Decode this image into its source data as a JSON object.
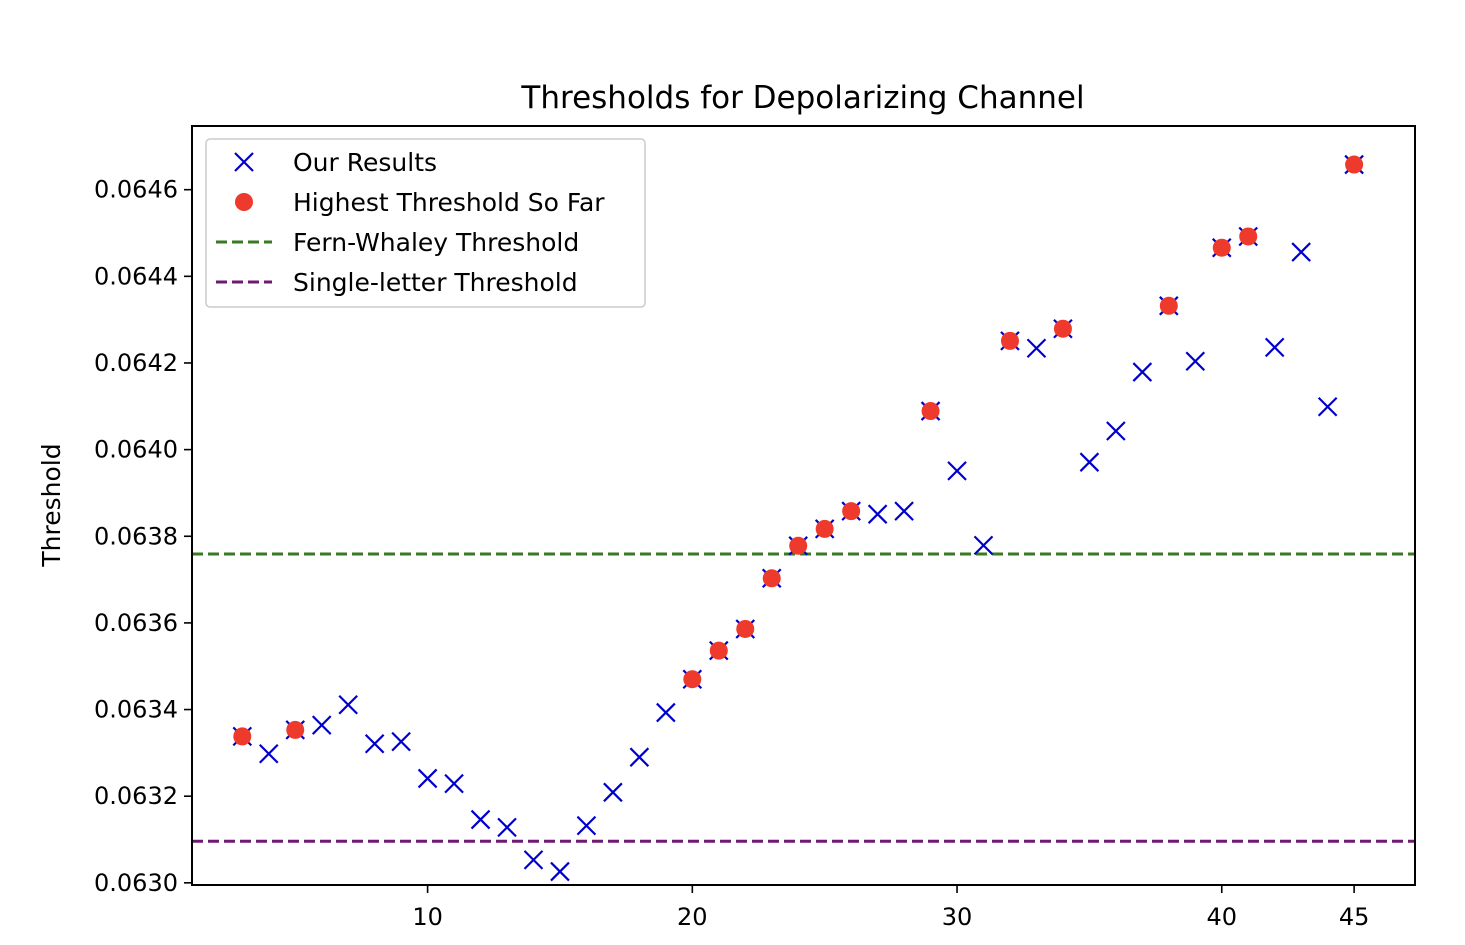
{
  "chart_data": {
    "type": "scatter",
    "title": "Thresholds for Depolarizing Channel",
    "xlabel": "",
    "ylabel": "Threshold",
    "xlim": [
      1.1,
      47.3
    ],
    "ylim": [
      0.062995,
      0.064747
    ],
    "x_ticks": [
      10,
      20,
      30,
      40,
      45
    ],
    "y_ticks": [
      0.063,
      0.0632,
      0.0634,
      0.0636,
      0.0638,
      0.064,
      0.0642,
      0.0644,
      0.0646
    ],
    "y_tick_labels": [
      "0.0630",
      "0.0632",
      "0.0634",
      "0.0636",
      "0.0638",
      "0.0640",
      "0.0642",
      "0.0644",
      "0.0646"
    ],
    "grid": false,
    "legend_position": "top-left",
    "series": [
      {
        "name": "Our Results",
        "marker": "x",
        "color": "#0000cc",
        "x": [
          3,
          4,
          5,
          6,
          7,
          8,
          9,
          10,
          11,
          12,
          13,
          14,
          15,
          16,
          17,
          18,
          19,
          20,
          21,
          22,
          23,
          24,
          25,
          26,
          27,
          28,
          29,
          30,
          31,
          32,
          33,
          34,
          35,
          36,
          37,
          38,
          39,
          40,
          41,
          42,
          43,
          44,
          45
        ],
        "y": [
          0.063338,
          0.063298,
          0.063353,
          0.063364,
          0.063411,
          0.063321,
          0.063326,
          0.063241,
          0.063229,
          0.063146,
          0.063128,
          0.063053,
          0.063026,
          0.063132,
          0.063209,
          0.06329,
          0.063393,
          0.06347,
          0.063536,
          0.063586,
          0.063703,
          0.063778,
          0.063817,
          0.063858,
          0.063851,
          0.063858,
          0.064089,
          0.063951,
          0.063779,
          0.064251,
          0.064234,
          0.064279,
          0.063971,
          0.064043,
          0.064179,
          0.064332,
          0.064204,
          0.064466,
          0.064492,
          0.064236,
          0.064456,
          0.064099,
          0.064658
        ]
      },
      {
        "name": "Highest Threshold So Far",
        "marker": "o",
        "color": "#ee3a2c",
        "x": [
          3,
          5,
          20,
          21,
          22,
          23,
          24,
          25,
          26,
          29,
          32,
          34,
          38,
          40,
          41,
          45
        ],
        "y": [
          0.063338,
          0.063353,
          0.06347,
          0.063536,
          0.063586,
          0.063703,
          0.063778,
          0.063817,
          0.063858,
          0.064089,
          0.064251,
          0.064279,
          0.064332,
          0.064466,
          0.064492,
          0.064658
        ]
      }
    ],
    "hlines": [
      {
        "name": "Fern-Whaley Threshold",
        "y": 0.063759,
        "color": "#3a7a22",
        "style": "dashed"
      },
      {
        "name": "Single-letter Threshold",
        "y": 0.063096,
        "color": "#6f1a72",
        "style": "dashed"
      }
    ]
  }
}
